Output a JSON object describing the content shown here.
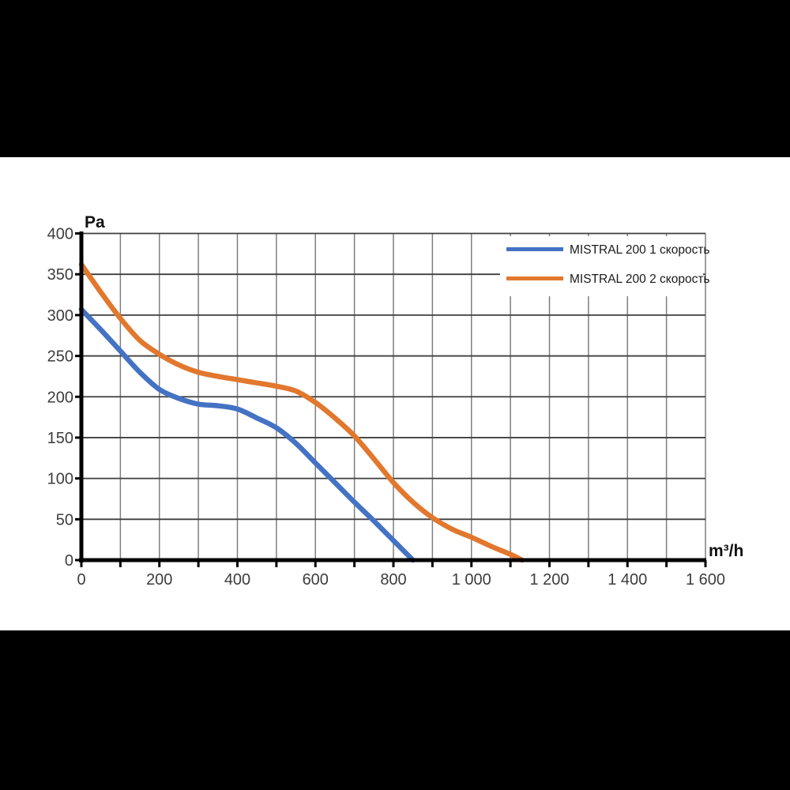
{
  "chart_data": {
    "type": "line",
    "title": "",
    "ylabel": "Pa",
    "xlabel": "m³/h",
    "xlim": [
      0,
      1600
    ],
    "ylim": [
      0,
      400
    ],
    "x_grid_step": 100,
    "x_label_step": 200,
    "y_grid_step": 50,
    "grid": true,
    "legend_position": "top-right",
    "x_tick_labels": [
      "0",
      "200",
      "400",
      "600",
      "800",
      "1 000",
      "1 200",
      "1 400",
      "1 600"
    ],
    "y_tick_labels": [
      "0",
      "50",
      "100",
      "150",
      "200",
      "250",
      "300",
      "350",
      "400"
    ],
    "series": [
      {
        "name": "MISTRAL 200 1 скорость",
        "color": "#4472C4",
        "points": [
          [
            0,
            307
          ],
          [
            50,
            282
          ],
          [
            100,
            256
          ],
          [
            150,
            230
          ],
          [
            200,
            209
          ],
          [
            250,
            198
          ],
          [
            300,
            191
          ],
          [
            350,
            189
          ],
          [
            400,
            185
          ],
          [
            450,
            174
          ],
          [
            500,
            162
          ],
          [
            550,
            143
          ],
          [
            600,
            119
          ],
          [
            650,
            95
          ],
          [
            700,
            71
          ],
          [
            750,
            48
          ],
          [
            800,
            24
          ],
          [
            850,
            0
          ]
        ]
      },
      {
        "name": "MISTRAL 200 2 скорость",
        "color": "#E2772E",
        "points": [
          [
            0,
            362
          ],
          [
            50,
            328
          ],
          [
            100,
            296
          ],
          [
            150,
            269
          ],
          [
            200,
            252
          ],
          [
            250,
            239
          ],
          [
            300,
            230
          ],
          [
            350,
            225
          ],
          [
            400,
            221
          ],
          [
            450,
            217
          ],
          [
            500,
            213
          ],
          [
            550,
            207
          ],
          [
            600,
            193
          ],
          [
            650,
            174
          ],
          [
            700,
            152
          ],
          [
            750,
            124
          ],
          [
            800,
            95
          ],
          [
            850,
            71
          ],
          [
            900,
            52
          ],
          [
            950,
            38
          ],
          [
            1000,
            28
          ],
          [
            1050,
            17
          ],
          [
            1100,
            7
          ],
          [
            1130,
            0
          ]
        ]
      }
    ],
    "colors": {
      "grid_h": "#3f3f3f",
      "grid_v": "#7f7f7f",
      "axis": "#000000",
      "tick_text": "#3d3d3d",
      "legend_bg": "#ffffff"
    }
  }
}
